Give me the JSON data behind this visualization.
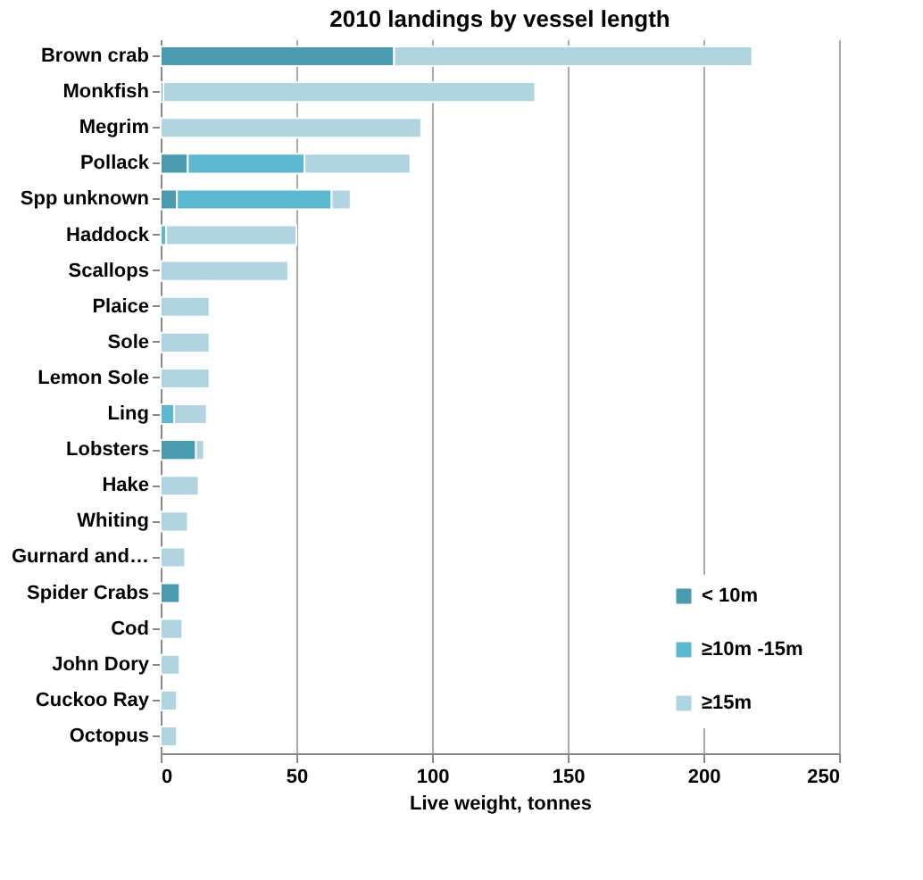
{
  "chart_data": {
    "type": "bar",
    "orientation": "horizontal",
    "stacked": true,
    "title": "2010 landings by vessel length",
    "xlabel": "Live weight, tonnes",
    "categories": [
      "Brown crab",
      "Monkfish",
      "Megrim",
      "Pollack",
      "Spp unknown",
      "Haddock",
      "Scallops",
      "Plaice",
      "Sole",
      "Lemon Sole",
      "Ling",
      "Lobsters",
      "Hake",
      "Whiting",
      "Gurnard and…",
      "Spider Crabs",
      "Cod",
      "John Dory",
      "Cuckoo Ray",
      "Octopus"
    ],
    "series": [
      {
        "name": "< 10m",
        "color": "#4a9bb0",
        "values": [
          86,
          null,
          null,
          10,
          6,
          null,
          null,
          null,
          null,
          null,
          null,
          13,
          null,
          null,
          null,
          7,
          null,
          null,
          null,
          null
        ]
      },
      {
        "name": "≥10m -15m",
        "color": "#5bb8d0",
        "values": [
          null,
          1,
          null,
          43,
          57,
          2,
          null,
          null,
          null,
          null,
          5,
          null,
          null,
          null,
          null,
          null,
          null,
          null,
          null,
          null
        ]
      },
      {
        "name": "≥15m",
        "color": "#b0d4e0",
        "values": [
          132,
          137,
          96,
          39,
          7,
          48,
          47,
          18,
          18,
          18,
          12,
          3,
          14,
          10,
          9,
          null,
          8,
          7,
          6,
          6
        ]
      }
    ],
    "xlim": [
      0,
      250
    ],
    "xticks": [
      0,
      50,
      100,
      150,
      200,
      250
    ],
    "grid": "x",
    "legend": "bottom right"
  }
}
